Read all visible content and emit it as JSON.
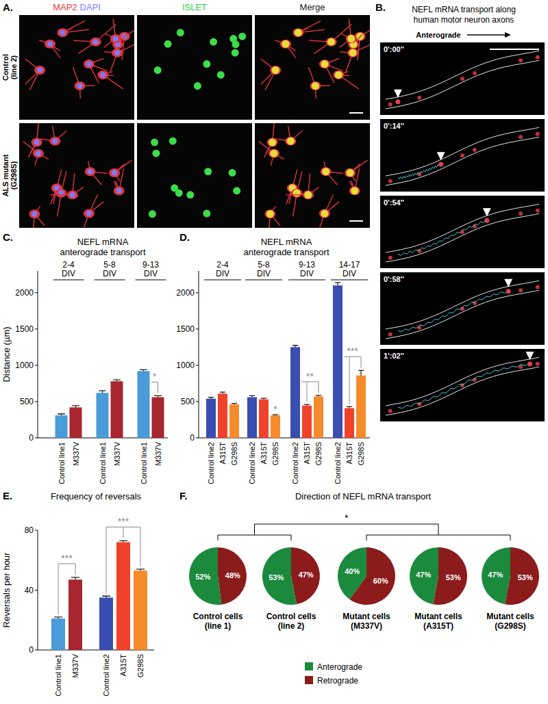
{
  "image_panels": {
    "a": {
      "label": "A.",
      "columns": [
        {
          "parts": [
            {
              "text": "MAP2",
              "color": "#e8383a"
            },
            {
              "text": "DAPI",
              "color": "#7b7bff"
            }
          ]
        },
        {
          "parts": [
            {
              "text": "ISLET",
              "color": "#2ecc40"
            }
          ]
        },
        {
          "parts": [
            {
              "text": "Merge",
              "color": "#222222"
            }
          ]
        }
      ],
      "rows": [
        {
          "lines": [
            "Control",
            "(line 2)"
          ]
        },
        {
          "lines": [
            "ALS mutant",
            "(G298S)"
          ]
        }
      ]
    },
    "b": {
      "label": "B.",
      "title": [
        "NEFL mRNA transport along",
        "human motor neuron axons"
      ],
      "direction": "Anterograde",
      "timestamps": [
        "0':00''",
        "0':14''",
        "0':54''",
        "0':58''",
        "1':02''"
      ]
    }
  },
  "chart_data": [
    {
      "type": "bar",
      "panel": "C.",
      "title": [
        "NEFL mRNA",
        "anterograde transport"
      ],
      "y_label": "Distance (µm)",
      "categories": [
        "2-4 DIV",
        "5-8 DIV",
        "9-13 DIV"
      ],
      "series": [
        {
          "name": "Control line1",
          "color": "#4a9bd8",
          "values": [
            310,
            620,
            920
          ],
          "errors": [
            20,
            30,
            20
          ]
        },
        {
          "name": "M337V",
          "color": "#a8262f",
          "values": [
            420,
            780,
            560
          ],
          "errors": [
            25,
            20,
            20
          ]
        }
      ],
      "ylim": [
        0,
        2300
      ],
      "yticks": [
        0,
        500,
        1000,
        1500,
        2000
      ],
      "significance": [
        {
          "category": 2,
          "from": 0,
          "to": [
            1
          ],
          "label": "*"
        }
      ]
    },
    {
      "type": "bar",
      "panel": "D.",
      "title": [
        "NEFL mRNA",
        "anterograde transport"
      ],
      "categories": [
        "2-4 DIV",
        "5-8 DIV",
        "9-13 DIV",
        "14-17 DIV"
      ],
      "series": [
        {
          "name": "Control line2",
          "color": "#3a4db0",
          "values": [
            540,
            560,
            1250,
            2100
          ],
          "errors": [
            20,
            20,
            25,
            40
          ]
        },
        {
          "name": "A315T",
          "color": "#f2412b",
          "values": [
            610,
            530,
            445,
            410
          ],
          "errors": [
            20,
            15,
            15,
            20
          ]
        },
        {
          "name": "G298S",
          "color": "#f58b2a",
          "values": [
            460,
            310,
            570,
            860
          ],
          "errors": [
            15,
            10,
            15,
            70
          ]
        }
      ],
      "ylim": [
        0,
        2300
      ],
      "yticks": [
        0,
        500,
        1000,
        1500,
        2000
      ],
      "significance": [
        {
          "category": 1,
          "to": [
            2
          ],
          "label": "*"
        },
        {
          "category": 2,
          "from": 0,
          "to": [
            1,
            2
          ],
          "label": "**"
        },
        {
          "category": 3,
          "from": 0,
          "to": [
            1,
            2
          ],
          "label": "***"
        }
      ]
    },
    {
      "type": "bar",
      "panel": "E.",
      "title": "Frequency of reversals",
      "y_label": "Reversals per hour",
      "categories": [
        "Control line1",
        "M337V",
        "Control line2",
        "A315T",
        "G298S"
      ],
      "values": [
        21,
        47,
        35,
        72,
        53
      ],
      "errors": [
        1,
        1.5,
        1,
        1,
        1
      ],
      "colors": [
        "#4a9bd8",
        "#a8262f",
        "#3a4db0",
        "#f2412b",
        "#f58b2a"
      ],
      "ylim": [
        0,
        80
      ],
      "yticks": [
        0,
        40,
        80
      ],
      "significance": [
        {
          "from": 0,
          "to": [
            1
          ],
          "label": "***"
        },
        {
          "from": 2,
          "to": [
            3,
            4
          ],
          "label": "***"
        }
      ]
    },
    {
      "type": "pie",
      "panel": "F.",
      "title": "Direction of NEFL mRNA transport",
      "categories": [
        "Anterograde",
        "Retrograde"
      ],
      "colors": [
        "#1b8a3c",
        "#8c1c1c"
      ],
      "series": [
        {
          "name": "Control cells (line 1)",
          "values": [
            52,
            48
          ],
          "value_labels": [
            "52%",
            "48%"
          ]
        },
        {
          "name": "Control cells (line 2)",
          "values": [
            53,
            47
          ],
          "value_labels": [
            "53%",
            "47%"
          ]
        },
        {
          "name": "Mutant cells (M337V)",
          "values": [
            40,
            60
          ],
          "value_labels": [
            "40%",
            "60%"
          ]
        },
        {
          "name": "Mutant cells (A315T)",
          "values": [
            47,
            53
          ],
          "value_labels": [
            "47%",
            "53%"
          ]
        },
        {
          "name": "Mutant cells (G298S)",
          "values": [
            47,
            53
          ],
          "value_labels": [
            "47%",
            "53%"
          ]
        }
      ],
      "data_labels": true,
      "legend": "bottom",
      "significance": [
        {
          "groups": [
            [
              0,
              1
            ],
            [
              2,
              3,
              4
            ]
          ],
          "label": "*"
        }
      ]
    }
  ]
}
